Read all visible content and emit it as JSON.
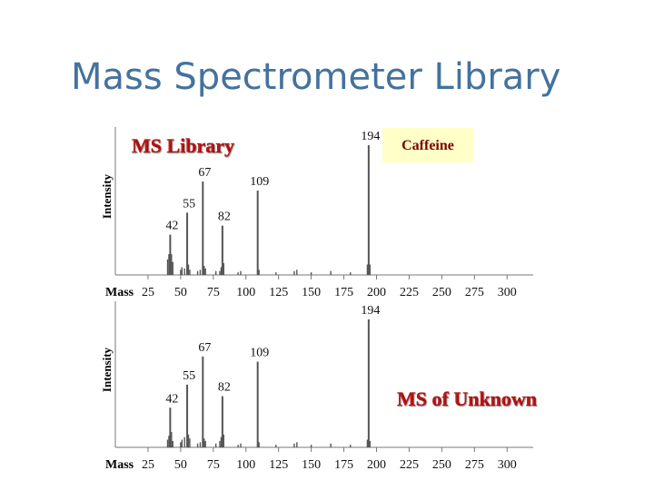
{
  "title": "Mass Spectrometer Library",
  "chart_data": [
    {
      "type": "bar",
      "label": "MS Library",
      "annotation": "Caffeine",
      "ylabel": "Intensity",
      "xlabel": "Mass",
      "x": [
        42,
        55,
        67,
        82,
        109,
        194
      ],
      "values": [
        31,
        48,
        72,
        38,
        65,
        100
      ],
      "minor_x": [
        40,
        41,
        43,
        44,
        50,
        51,
        53,
        56,
        57,
        63,
        65,
        68,
        69,
        77,
        80,
        81,
        83,
        94,
        96,
        110,
        123,
        137,
        139,
        150,
        165,
        180,
        193,
        195
      ],
      "minor_values": [
        12,
        16,
        16,
        10,
        4,
        6,
        5,
        8,
        4,
        3,
        4,
        7,
        5,
        3,
        3,
        6,
        9,
        2,
        3,
        4,
        2,
        3,
        4,
        2,
        3,
        2,
        8,
        8
      ],
      "color": "#555555",
      "xlim": [
        0,
        320
      ],
      "ylim": [
        0,
        100
      ],
      "xticks": [
        25,
        50,
        75,
        100,
        125,
        150,
        175,
        200,
        225,
        250,
        275,
        300
      ]
    },
    {
      "type": "bar",
      "label": "MS of Unknown",
      "ylabel": "Intensity",
      "xlabel": "Mass",
      "x": [
        42,
        55,
        67,
        82,
        109,
        194
      ],
      "values": [
        31,
        49,
        71,
        40,
        67,
        100
      ],
      "minor_x": [
        40,
        41,
        43,
        44,
        50,
        51,
        53,
        56,
        57,
        63,
        65,
        68,
        69,
        77,
        80,
        81,
        83,
        94,
        96,
        110,
        123,
        137,
        139,
        150,
        165,
        180,
        193,
        195
      ],
      "minor_values": [
        6,
        9,
        12,
        5,
        4,
        6,
        8,
        10,
        7,
        3,
        4,
        7,
        5,
        3,
        5,
        8,
        10,
        2,
        3,
        4,
        2,
        3,
        4,
        2,
        3,
        2,
        6,
        5
      ],
      "color": "#555555",
      "xlim": [
        0,
        320
      ],
      "ylim": [
        0,
        100
      ],
      "xticks": [
        25,
        50,
        75,
        100,
        125,
        150,
        175,
        200,
        225,
        250,
        275,
        300
      ]
    }
  ]
}
